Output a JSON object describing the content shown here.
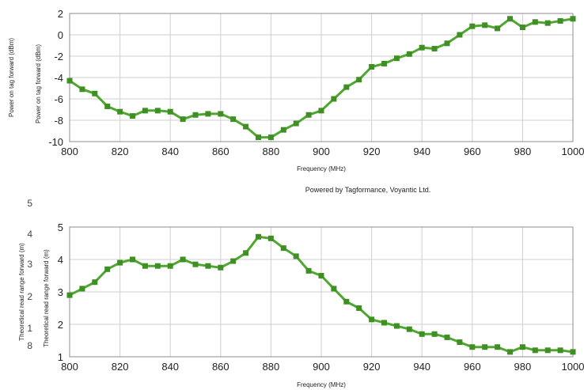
{
  "credit": "Powered by Tagformance, Voyantic Ltd.",
  "colors": {
    "series": "#4ea72e",
    "marker": "#3f8f24",
    "grid": "#cfcfcf",
    "frame": "#8c8c8c"
  },
  "chart_data": [
    {
      "type": "line",
      "xlabel": "Frequency (MHz)",
      "ylabel": "Power on tag forward (dBm)",
      "ylabel_duplicate": "Power on tag forward (dBm)",
      "xlim": [
        800,
        1000
      ],
      "ylim": [
        -10,
        2
      ],
      "x_ticks": [
        "800",
        "820",
        "840",
        "860",
        "880",
        "900",
        "920",
        "940",
        "960",
        "980",
        "1000"
      ],
      "y_ticks": [
        "-10",
        "-8",
        "-6",
        "-4",
        "-2",
        "0",
        "2"
      ],
      "grid": true,
      "x": [
        800,
        805,
        810,
        815,
        820,
        825,
        830,
        835,
        840,
        845,
        850,
        855,
        860,
        865,
        870,
        875,
        880,
        885,
        890,
        895,
        900,
        905,
        910,
        915,
        920,
        925,
        930,
        935,
        940,
        945,
        950,
        955,
        960,
        965,
        970,
        975,
        980,
        985,
        990,
        995,
        1000
      ],
      "y": [
        -4.3,
        -5.1,
        -5.5,
        -6.7,
        -7.2,
        -7.6,
        -7.1,
        -7.1,
        -7.2,
        -7.9,
        -7.5,
        -7.4,
        -7.4,
        -7.9,
        -8.6,
        -9.6,
        -9.6,
        -8.9,
        -8.3,
        -7.5,
        -7.1,
        -6.0,
        -4.9,
        -4.2,
        -3.0,
        -2.7,
        -2.2,
        -1.8,
        -1.2,
        -1.3,
        -0.8,
        0.0,
        0.8,
        0.9,
        0.6,
        1.5,
        0.7,
        1.2,
        1.1,
        1.3,
        1.5
      ]
    },
    {
      "type": "line",
      "xlabel": "Frequency (MHz)",
      "ylabel": "Theoretical read range forward (m)",
      "ylabel_duplicate": "Theoretical read range forward (m)",
      "xlim": [
        800,
        1000
      ],
      "ylim": [
        1,
        5
      ],
      "x_ticks": [
        "800",
        "820",
        "840",
        "860",
        "880",
        "900",
        "920",
        "940",
        "960",
        "980",
        "1000"
      ],
      "y_ticks": [
        "1",
        "2",
        "3",
        "4",
        "5"
      ],
      "y_ticks_ghost": [
        "5",
        "4",
        "3",
        "2",
        "1",
        "8"
      ],
      "grid": true,
      "x": [
        800,
        805,
        810,
        815,
        820,
        825,
        830,
        835,
        840,
        845,
        850,
        855,
        860,
        865,
        870,
        875,
        880,
        885,
        890,
        895,
        900,
        905,
        910,
        915,
        920,
        925,
        930,
        935,
        940,
        945,
        950,
        955,
        960,
        965,
        970,
        975,
        980,
        985,
        990,
        995,
        1000
      ],
      "y": [
        2.9,
        3.1,
        3.3,
        3.7,
        3.9,
        4.0,
        3.8,
        3.8,
        3.8,
        4.0,
        3.85,
        3.8,
        3.75,
        3.95,
        4.2,
        4.7,
        4.65,
        4.35,
        4.1,
        3.65,
        3.5,
        3.1,
        2.7,
        2.5,
        2.15,
        2.05,
        1.95,
        1.85,
        1.7,
        1.7,
        1.6,
        1.45,
        1.3,
        1.3,
        1.3,
        1.15,
        1.3,
        1.2,
        1.2,
        1.2,
        1.15
      ]
    }
  ]
}
